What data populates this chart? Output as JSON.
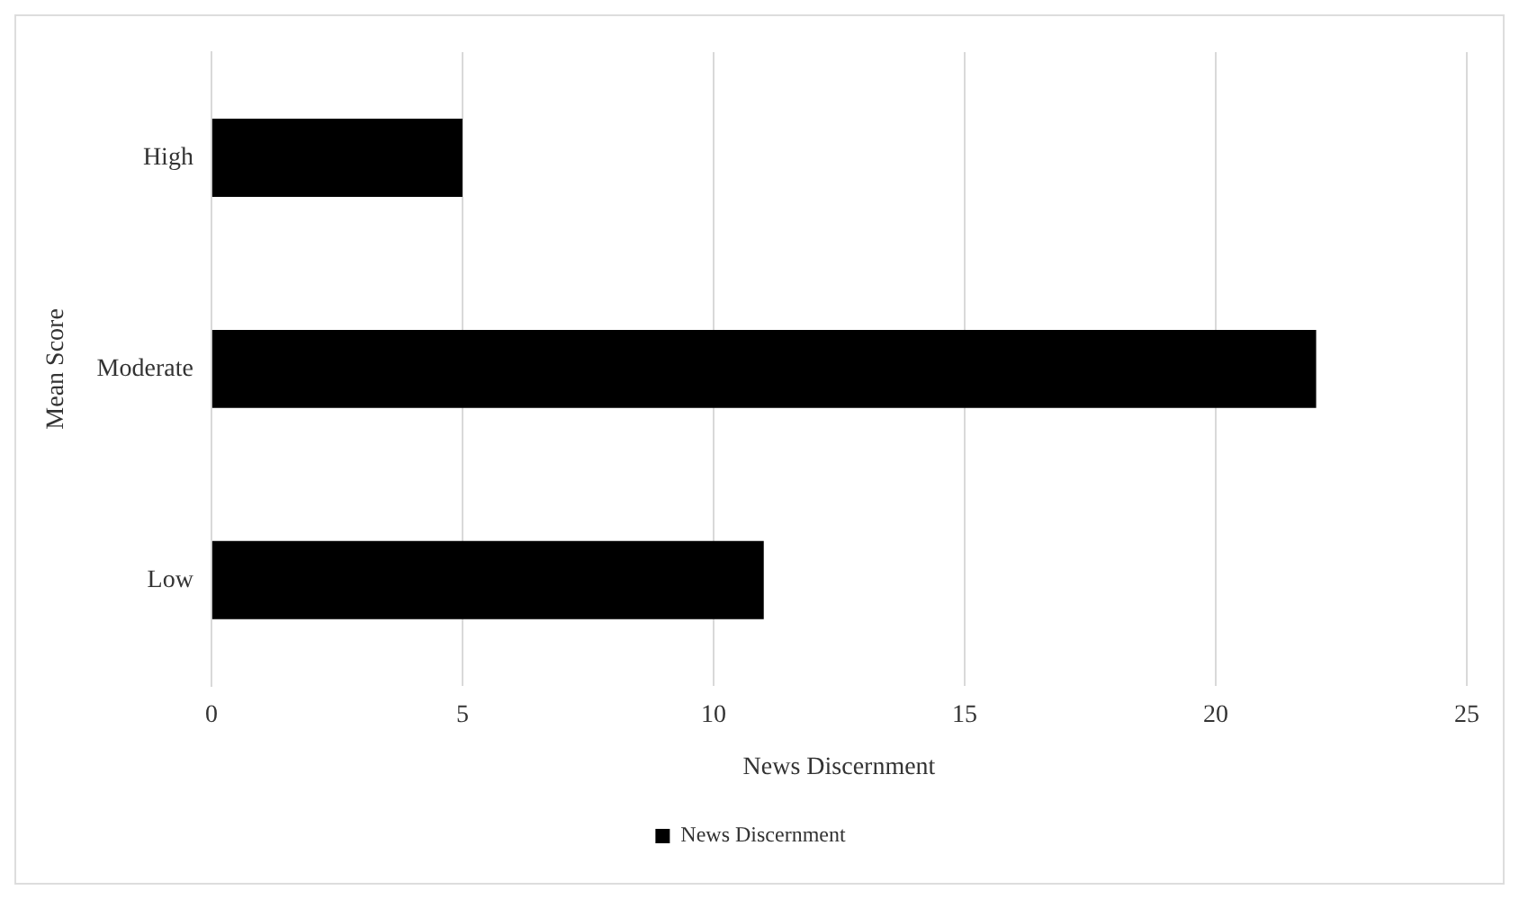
{
  "chart_data": {
    "type": "bar",
    "orientation": "horizontal",
    "xlabel": "News Discernment",
    "ylabel": "Mean Score",
    "categories": [
      "High",
      "Moderate",
      "Low"
    ],
    "series": [
      {
        "name": "News Discernment",
        "color": "#000000",
        "values": [
          5,
          22,
          11
        ]
      }
    ],
    "xlim": [
      0,
      25
    ],
    "xticks": [
      0,
      5,
      10,
      15,
      20,
      25
    ],
    "grid": "x",
    "legend": "bottom"
  }
}
